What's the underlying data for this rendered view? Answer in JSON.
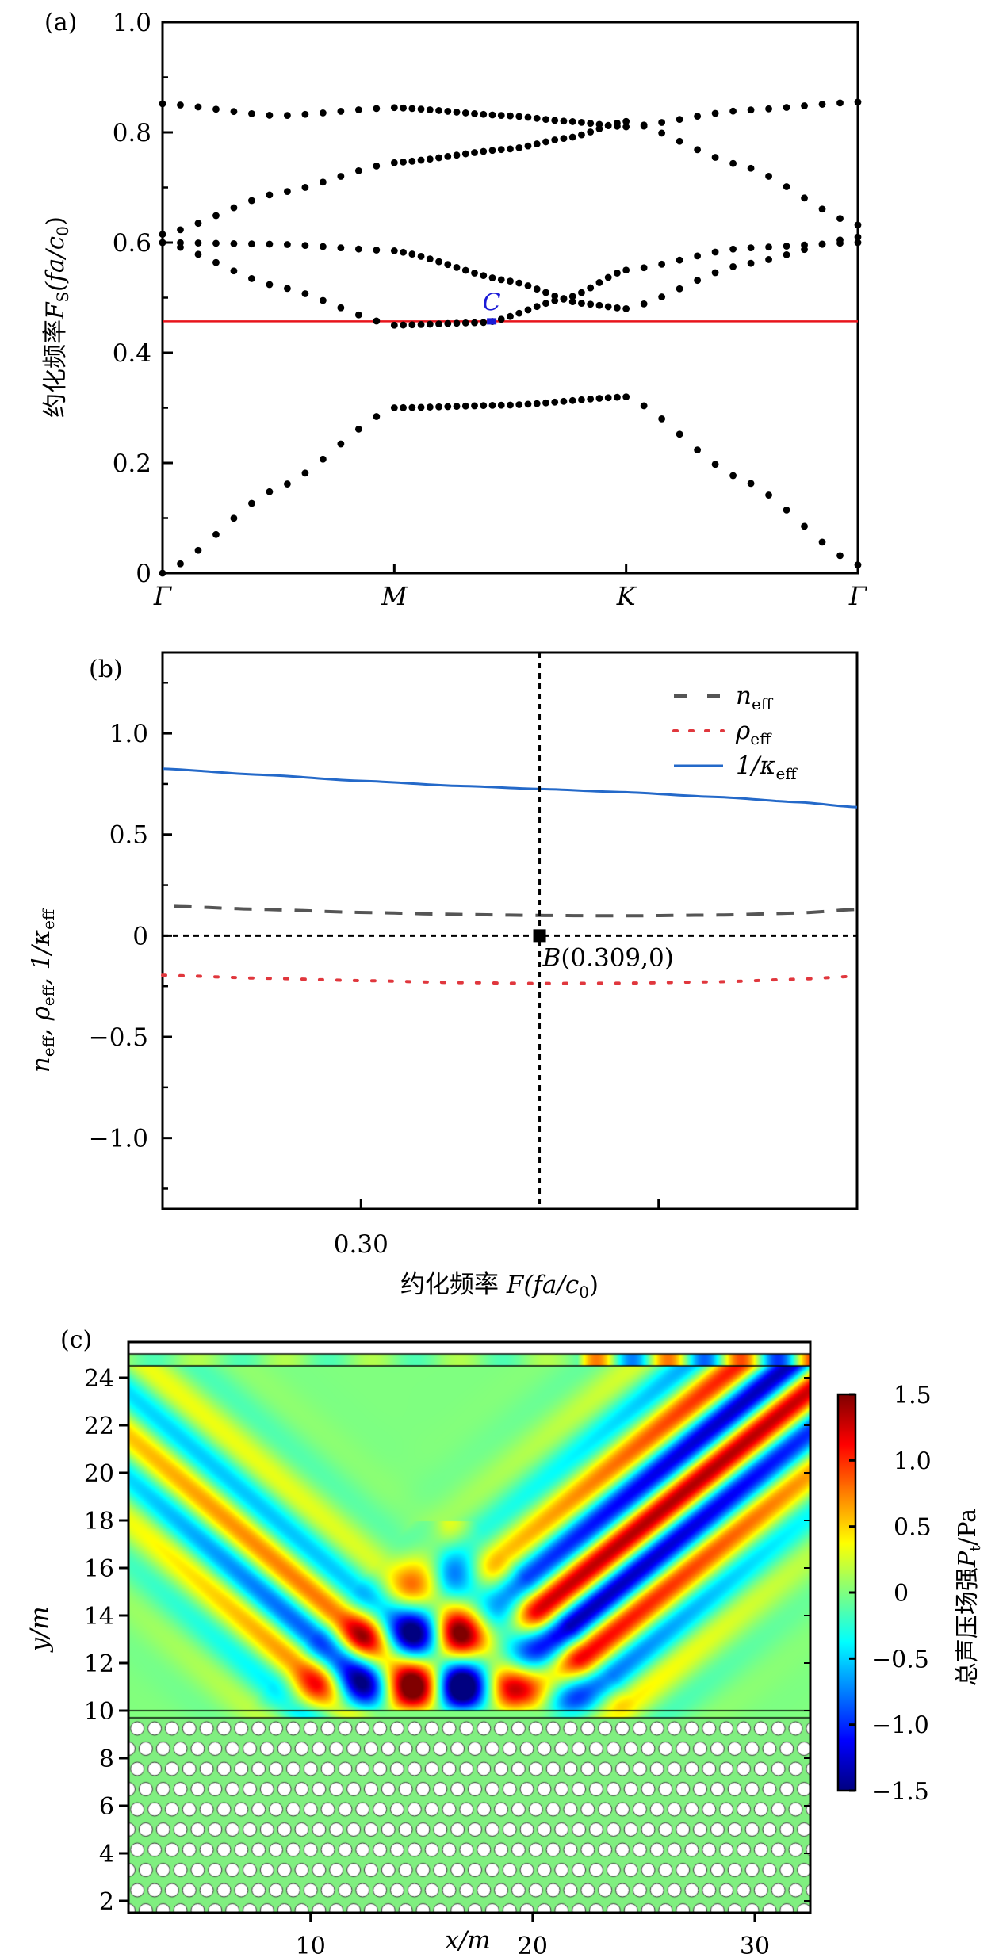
{
  "chart_data": [
    {
      "id": "a",
      "type": "scatter",
      "panel_label": "(a)",
      "title": "",
      "xlabel": "",
      "ylabel_cn": "约化频率",
      "ylabel_math": "F",
      "ylabel_sub": "S",
      "ylabel_unit": "(fa/c",
      "ylabel_unit_sub": "0",
      "ylabel_tail": ")",
      "ylim": [
        0,
        1.0
      ],
      "yticks": [
        0,
        0.2,
        0.4,
        0.6,
        0.8,
        1.0
      ],
      "ytick_labels": [
        "0",
        "0.2",
        "0.4",
        "0.6",
        "0.8",
        "1.0"
      ],
      "yminor": [
        0.1,
        0.3,
        0.5,
        0.7,
        0.9
      ],
      "xticks": [
        0,
        1,
        2,
        3
      ],
      "xtick_labels": [
        "Γ",
        "M",
        "K",
        "Γ"
      ],
      "grid": false,
      "marker_color": "#000000",
      "points_per_segment": [
        13,
        26,
        13
      ],
      "bands": [
        {
          "name": "band-1",
          "values": [
            [
              0,
              0.0
            ],
            [
              0.5,
              0.155
            ],
            [
              1,
              0.3
            ],
            [
              1.5,
              0.305
            ],
            [
              2,
              0.32
            ],
            [
              2.5,
              0.17
            ],
            [
              3,
              0.015
            ]
          ]
        },
        {
          "name": "band-2",
          "values": [
            [
              0,
              0.6
            ],
            [
              0.5,
              0.52
            ],
            [
              1,
              0.45
            ],
            [
              1.4,
              0.455
            ],
            [
              1.75,
              0.5
            ],
            [
              2,
              0.55
            ],
            [
              2.5,
              0.59
            ],
            [
              3,
              0.6
            ]
          ]
        },
        {
          "name": "band-3",
          "values": [
            [
              0,
              0.6
            ],
            [
              0.5,
              0.597
            ],
            [
              1,
              0.585
            ],
            [
              1.5,
              0.53
            ],
            [
              1.8,
              0.49
            ],
            [
              2,
              0.48
            ],
            [
              2.5,
              0.56
            ],
            [
              3,
              0.61
            ]
          ]
        },
        {
          "name": "band-4",
          "values": [
            [
              0,
              0.615
            ],
            [
              0.5,
              0.69
            ],
            [
              1,
              0.745
            ],
            [
              1.5,
              0.77
            ],
            [
              1.75,
              0.79
            ],
            [
              2,
              0.82
            ],
            [
              2.5,
              0.74
            ],
            [
              3,
              0.632
            ]
          ]
        },
        {
          "name": "band-5",
          "values": [
            [
              0,
              0.852
            ],
            [
              0.5,
              0.83
            ],
            [
              1,
              0.845
            ],
            [
              1.5,
              0.83
            ],
            [
              1.75,
              0.82
            ],
            [
              2,
              0.81
            ],
            [
              2.5,
              0.84
            ],
            [
              3,
              0.855
            ]
          ]
        }
      ],
      "reference_line": {
        "y": 0.457,
        "color": "#e8141c"
      },
      "marker_point": {
        "label": "C",
        "x": 1.42,
        "y": 0.457,
        "color": "#1a1ad6"
      }
    },
    {
      "id": "b",
      "type": "line",
      "panel_label": "(b)",
      "xlabel_cn": "约化频率",
      "xlabel_math": "F(fa/c",
      "xlabel_sub": "0",
      "xlabel_tail": ")",
      "ylabel_parts": [
        "n",
        "eff",
        ", ρ",
        "eff",
        ", 1/κ",
        "eff"
      ],
      "xlim": [
        0.29,
        0.325
      ],
      "ylim": [
        -1.35,
        1.4
      ],
      "xticks": [
        0.3,
        0.315
      ],
      "xtick_labels": [
        "0.30",
        ""
      ],
      "yticks": [
        -1.0,
        -0.5,
        0,
        0.5,
        1.0
      ],
      "ytick_labels": [
        "−1.0",
        "−0.5",
        "0",
        "0.5",
        "1.0"
      ],
      "yminor": [
        -1.25,
        -0.75,
        -0.25,
        0.25,
        0.75,
        1.25
      ],
      "grid": false,
      "legend_position": "top-right",
      "series": [
        {
          "name": "n_eff",
          "label_main": "n",
          "label_sub": "eff",
          "style": "dashed",
          "color": "#555555",
          "x": [
            0.2905,
            0.295,
            0.3,
            0.305,
            0.309,
            0.313,
            0.318,
            0.322,
            0.325
          ],
          "values": [
            0.145,
            0.13,
            0.115,
            0.105,
            0.1,
            0.098,
            0.102,
            0.112,
            0.13
          ]
        },
        {
          "name": "rho_eff",
          "label_main": "ρ",
          "label_sub": "eff",
          "style": "dotted",
          "color": "#e0373d",
          "x": [
            0.29,
            0.295,
            0.3,
            0.305,
            0.309,
            0.313,
            0.318,
            0.322,
            0.325
          ],
          "values": [
            -0.195,
            -0.21,
            -0.222,
            -0.232,
            -0.236,
            -0.235,
            -0.228,
            -0.215,
            -0.2
          ]
        },
        {
          "name": "inv_kappa_eff",
          "label_main": "1/κ",
          "label_sub": "eff",
          "style": "solid",
          "color": "#2469c9",
          "x": [
            0.29,
            0.295,
            0.3,
            0.305,
            0.309,
            0.313,
            0.318,
            0.322,
            0.325
          ],
          "values": [
            0.825,
            0.795,
            0.765,
            0.74,
            0.725,
            0.71,
            0.685,
            0.66,
            0.635
          ]
        }
      ],
      "crosshair": {
        "x": 0.309,
        "y": 0
      },
      "marker_point": {
        "label": "B(0.309,0)",
        "x": 0.309,
        "y": 0
      }
    },
    {
      "id": "c",
      "type": "heatmap",
      "panel_label": "(c)",
      "xlabel": "x/m",
      "ylabel": "y/m",
      "xlim": [
        1.8,
        32.5
      ],
      "ylim": [
        1.5,
        25.5
      ],
      "xticks": [
        10,
        20,
        30
      ],
      "xtick_labels": [
        "10",
        "20",
        "30"
      ],
      "yticks": [
        2,
        4,
        6,
        8,
        10,
        12,
        14,
        16,
        18,
        20,
        22,
        24
      ],
      "ytick_labels": [
        "2",
        "4",
        "6",
        "8",
        "10",
        "12",
        "14",
        "16",
        "18",
        "20",
        "22",
        "24"
      ],
      "colorbar": {
        "label_cn": "总声压场强",
        "label_math": "P",
        "label_sub": "t",
        "label_unit": "/Pa",
        "range": [
          -1.5,
          1.5
        ],
        "ticks": [
          -1.5,
          -1.0,
          -0.5,
          0,
          0.5,
          1.0,
          1.5
        ],
        "tick_labels": [
          "−1.5",
          "−1.0",
          "−0.5",
          "0",
          "0.5",
          "1.0",
          "1.5"
        ],
        "colormap": "jet"
      },
      "regions": {
        "crystal_y_max": 9.7,
        "interface_y": 10.0,
        "fluid_y_max": 24.5,
        "top_strip_y_max": 25.0,
        "crystal_fill": "#80ef80",
        "hole_color": "#ffffff",
        "lattice_spacing_m": 0.78,
        "lattice_row_spacing_m": 0.85
      }
    }
  ]
}
